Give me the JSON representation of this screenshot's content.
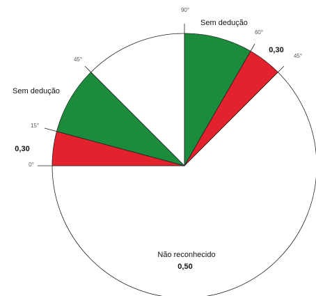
{
  "diagram": {
    "angles": {
      "top": "90°",
      "right_upper": "60°",
      "right_lower": "45°",
      "left_upper": "45°",
      "left_middle": "15°",
      "left_lower": "0°"
    },
    "right_zone": {
      "label": "Sem dedução",
      "deduction": "0,30"
    },
    "left_zone": {
      "label": "Sem dedução",
      "deduction": "0,30"
    },
    "bottom_zone": {
      "label": "Não reconhecido",
      "deduction": "0,50"
    }
  }
}
